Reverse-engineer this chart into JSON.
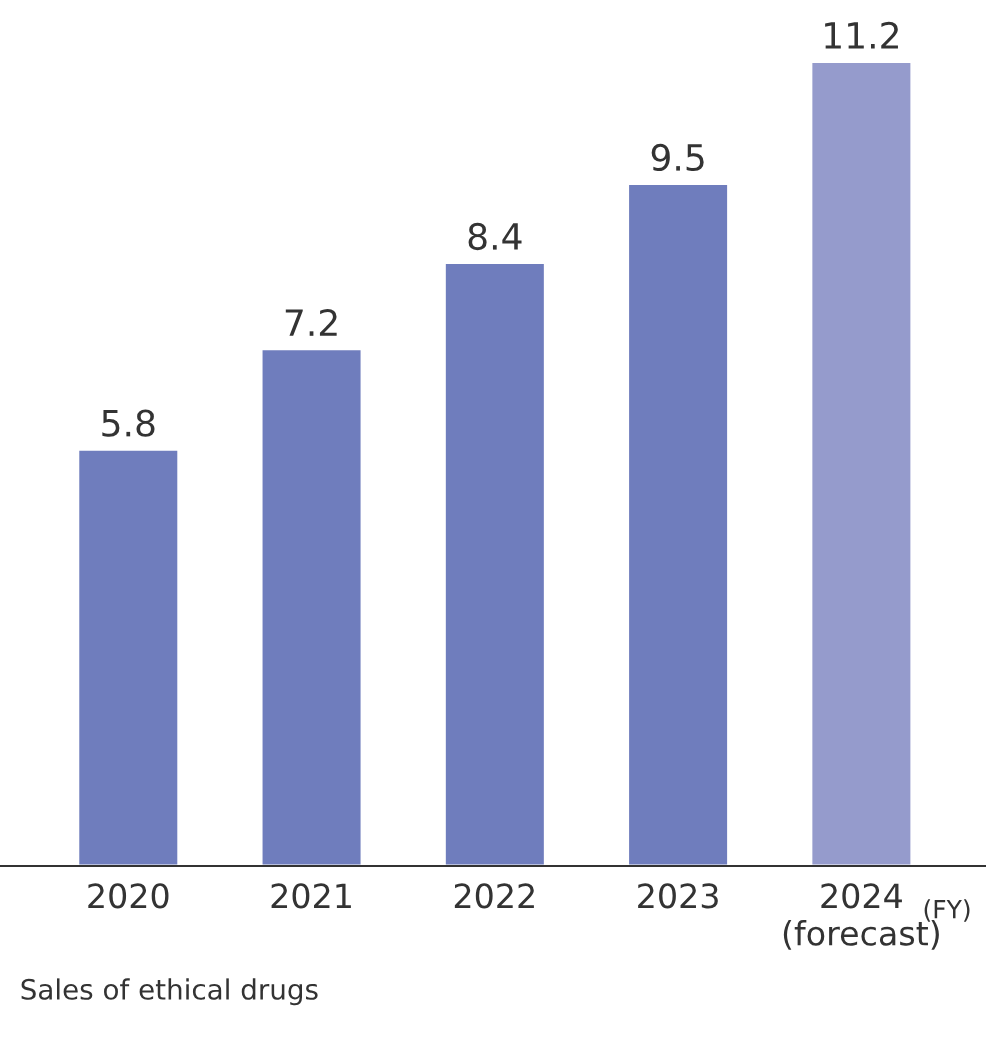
{
  "chart_data": {
    "type": "bar",
    "categories": [
      "2020",
      "2021",
      "2022",
      "2023",
      "2024\n(forecast)"
    ],
    "values": [
      5.8,
      7.2,
      8.4,
      9.5,
      11.2
    ],
    "colors": [
      "#6f7dbd",
      "#6f7dbd",
      "#6f7dbd",
      "#6f7dbd",
      "#959bcc"
    ],
    "xlabel": "(FY)",
    "data_labels": true,
    "grid": false,
    "legend": false,
    "annotations": [
      "Sales of ethical drugs"
    ]
  }
}
